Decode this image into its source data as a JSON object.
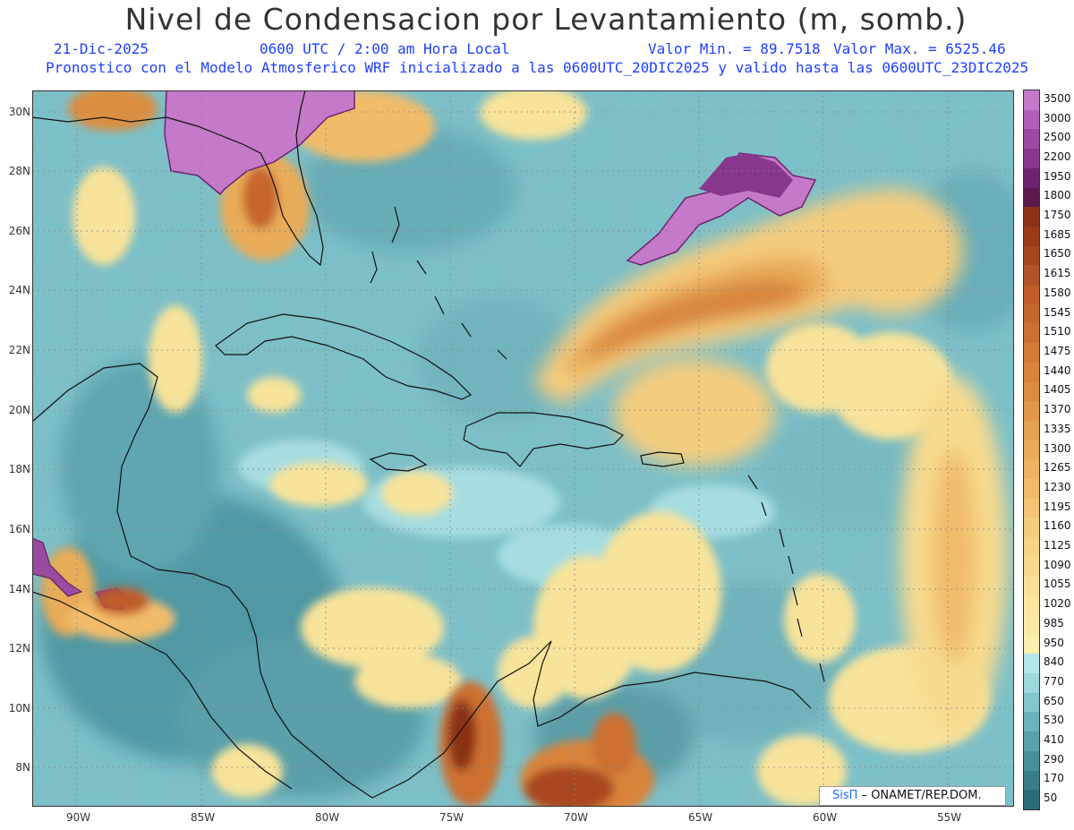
{
  "title": "Nivel de Condensacion por Levantamiento (m, somb.)",
  "date": "21-Dic-2025",
  "time": "0600 UTC / 2:00 am Hora Local",
  "min_label": "Valor Min. = 89.7518",
  "max_label": "Valor Max. = 6525.46",
  "forecast_info": "Pronostico con el Modelo Atmosferico WRF inicializado a las 0600UTC_20DIC2025 y valido hasta las  0600UTC_23DIC2025",
  "lat_labels": [
    "30N",
    "28N",
    "26N",
    "24N",
    "22N",
    "20N",
    "18N",
    "16N",
    "14N",
    "12N",
    "10N",
    "8N"
  ],
  "lon_labels": [
    "90W",
    "85W",
    "80W",
    "75W",
    "70W",
    "65W",
    "60W",
    "55W"
  ],
  "legend": {
    "values": [
      "3500",
      "3000",
      "2500",
      "2200",
      "1950",
      "1800",
      "1750",
      "1685",
      "1650",
      "1615",
      "1580",
      "1545",
      "1510",
      "1475",
      "1440",
      "1405",
      "1370",
      "1335",
      "1300",
      "1265",
      "1230",
      "1195",
      "1160",
      "1125",
      "1090",
      "1055",
      "1020",
      "985",
      "950",
      "840",
      "770",
      "650",
      "530",
      "410",
      "290",
      "170",
      "50"
    ],
    "colors": [
      "#c47ac8",
      "#b060b8",
      "#9a4aa0",
      "#87388c",
      "#6c2470",
      "#5a1a4e",
      "#8a3218",
      "#9a3a1a",
      "#a84620",
      "#b45226",
      "#be5c2a",
      "#c6662e",
      "#cc7032",
      "#d27a36",
      "#d8843a",
      "#dc8e40",
      "#e09848",
      "#e4a250",
      "#e8ac58",
      "#ecb462",
      "#f0bc6a",
      "#f2c474",
      "#f4cc7e",
      "#f6d486",
      "#f8da8e",
      "#f8e096",
      "#fae69e",
      "#faeaa6",
      "#fceeae",
      "#b4e6ea",
      "#9cd8de",
      "#84c6ce",
      "#6cb2bc",
      "#5aa0aa",
      "#4a8e98",
      "#3a7c88",
      "#2c6a78"
    ]
  },
  "credit": {
    "logo": "SisΠ",
    "text": "– ONAMET/REP.DOM."
  }
}
